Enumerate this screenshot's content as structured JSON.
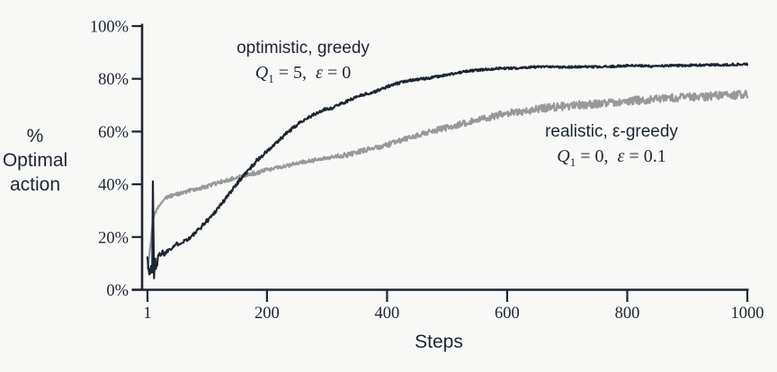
{
  "page": {
    "background": "#f8f8f6",
    "ink_color": "#1c2633"
  },
  "chart_data": {
    "type": "line",
    "title": "",
    "xlabel": "Steps",
    "ylabel": "% Optimal action",
    "ylabel_lines": [
      "%",
      "Optimal",
      "action"
    ],
    "xlim": [
      1,
      1000
    ],
    "ylim": [
      0,
      100
    ],
    "grid": false,
    "legend_position": "inline-annotations",
    "axis_color": "#1c2633",
    "x_ticks": [
      {
        "value": 1,
        "label": "1"
      },
      {
        "value": 200,
        "label": "200"
      },
      {
        "value": 400,
        "label": "400"
      },
      {
        "value": 600,
        "label": "600"
      },
      {
        "value": 800,
        "label": "800"
      },
      {
        "value": 1000,
        "label": "1000"
      }
    ],
    "y_ticks": [
      {
        "value": 0,
        "label": "0%"
      },
      {
        "value": 20,
        "label": "20%"
      },
      {
        "value": 40,
        "label": "40%"
      },
      {
        "value": 60,
        "label": "60%"
      },
      {
        "value": 80,
        "label": "80%"
      },
      {
        "value": 100,
        "label": "100%"
      }
    ],
    "series": [
      {
        "name": "optimistic, greedy",
        "params": "Q1 = 5, ε = 0",
        "color": "#1c2633",
        "seed": 1337,
        "keypoints": [
          [
            1,
            13
          ],
          [
            2,
            10
          ],
          [
            3,
            7
          ],
          [
            4,
            5.5
          ],
          [
            5,
            8
          ],
          [
            6,
            6.5
          ],
          [
            7,
            9
          ],
          [
            8,
            7
          ],
          [
            9,
            6.5
          ],
          [
            10,
            41
          ],
          [
            11,
            20
          ],
          [
            12,
            5
          ],
          [
            13,
            11
          ],
          [
            14,
            12
          ],
          [
            15,
            8.5
          ],
          [
            17,
            9
          ],
          [
            19,
            13
          ],
          [
            21,
            14.5
          ],
          [
            23,
            13
          ],
          [
            26,
            14.5
          ],
          [
            29,
            13.5
          ],
          [
            33,
            14.5
          ],
          [
            37,
            15.5
          ],
          [
            42,
            16
          ],
          [
            47,
            17
          ],
          [
            52,
            17.5
          ],
          [
            58,
            18
          ],
          [
            65,
            19
          ],
          [
            71,
            19.5
          ],
          [
            78,
            21
          ],
          [
            85,
            22.5
          ],
          [
            95,
            25
          ],
          [
            108,
            28
          ],
          [
            120,
            31.5
          ],
          [
            133,
            35
          ],
          [
            145,
            39
          ],
          [
            158,
            42.5
          ],
          [
            170,
            45.5
          ],
          [
            183,
            49
          ],
          [
            195,
            51.5
          ],
          [
            208,
            54
          ],
          [
            220,
            56.5
          ],
          [
            233,
            59.5
          ],
          [
            245,
            61.5
          ],
          [
            258,
            64
          ],
          [
            270,
            65.5
          ],
          [
            284,
            67
          ],
          [
            297,
            68.5
          ],
          [
            310,
            69
          ],
          [
            322,
            70.5
          ],
          [
            334,
            71.5
          ],
          [
            347,
            73
          ],
          [
            359,
            74
          ],
          [
            372,
            74.5
          ],
          [
            384,
            75.5
          ],
          [
            400,
            77
          ],
          [
            414,
            78
          ],
          [
            437,
            79.5
          ],
          [
            462,
            80
          ],
          [
            487,
            81
          ],
          [
            512,
            82
          ],
          [
            537,
            83
          ],
          [
            562,
            83.5
          ],
          [
            587,
            84
          ],
          [
            612,
            84
          ],
          [
            640,
            84.5
          ],
          [
            680,
            84.5
          ],
          [
            720,
            84.5
          ],
          [
            760,
            84.5
          ],
          [
            800,
            85
          ],
          [
            840,
            84.8
          ],
          [
            880,
            85
          ],
          [
            920,
            85.2
          ],
          [
            960,
            85.3
          ],
          [
            1000,
            85.6
          ]
        ],
        "noise": [
          [
            1,
            1.1
          ],
          [
            15,
            1.0
          ],
          [
            30,
            0.7
          ],
          [
            120,
            0.8
          ],
          [
            300,
            0.55
          ],
          [
            600,
            0.4
          ],
          [
            1000,
            0.4
          ]
        ]
      },
      {
        "name": "realistic, ε-greedy",
        "params": "Q1 = 0, ε = 0.1",
        "color": "#98989a",
        "seed": 4242,
        "keypoints": [
          [
            1,
            8
          ],
          [
            2,
            9.5
          ],
          [
            3,
            11
          ],
          [
            4,
            13
          ],
          [
            5,
            15
          ],
          [
            6,
            17
          ],
          [
            7,
            19
          ],
          [
            8,
            22
          ],
          [
            9,
            24
          ],
          [
            10,
            26
          ],
          [
            12,
            28
          ],
          [
            14,
            29
          ],
          [
            16,
            30
          ],
          [
            18,
            31
          ],
          [
            20,
            32
          ],
          [
            23,
            33
          ],
          [
            26,
            33.8
          ],
          [
            30,
            34.5
          ],
          [
            35,
            35.3
          ],
          [
            40,
            35.6
          ],
          [
            48,
            36
          ],
          [
            56,
            36.5
          ],
          [
            64,
            37
          ],
          [
            72,
            37.6
          ],
          [
            85,
            38.3
          ],
          [
            97,
            39
          ],
          [
            110,
            40
          ],
          [
            122,
            40.8
          ],
          [
            135,
            41.7
          ],
          [
            147,
            42.5
          ],
          [
            160,
            43.3
          ],
          [
            172,
            43.9
          ],
          [
            185,
            44.4
          ],
          [
            197,
            45.3
          ],
          [
            210,
            46
          ],
          [
            222,
            46.6
          ],
          [
            235,
            47.2
          ],
          [
            247,
            47.8
          ],
          [
            260,
            48.3
          ],
          [
            272,
            48.9
          ],
          [
            285,
            49.4
          ],
          [
            297,
            50
          ],
          [
            310,
            50.6
          ],
          [
            322,
            50.9
          ],
          [
            335,
            51.2
          ],
          [
            347,
            52
          ],
          [
            360,
            52.8
          ],
          [
            372,
            53.4
          ],
          [
            385,
            54
          ],
          [
            400,
            54.9
          ],
          [
            412,
            56
          ],
          [
            425,
            56.8
          ],
          [
            437,
            57.5
          ],
          [
            450,
            58.5
          ],
          [
            462,
            59.4
          ],
          [
            475,
            60.1
          ],
          [
            487,
            60.8
          ],
          [
            500,
            61.5
          ],
          [
            512,
            62.2
          ],
          [
            525,
            62.9
          ],
          [
            537,
            63.6
          ],
          [
            550,
            64.3
          ],
          [
            562,
            65
          ],
          [
            575,
            65.7
          ],
          [
            587,
            66.3
          ],
          [
            600,
            66.8
          ],
          [
            612,
            67.2
          ],
          [
            625,
            67.6
          ],
          [
            637,
            68
          ],
          [
            650,
            68.5
          ],
          [
            662,
            68.9
          ],
          [
            675,
            69.2
          ],
          [
            687,
            69.5
          ],
          [
            700,
            69.8
          ],
          [
            712,
            70
          ],
          [
            725,
            70.2
          ],
          [
            737,
            70.3
          ],
          [
            750,
            70.5
          ],
          [
            762,
            70.6
          ],
          [
            775,
            71
          ],
          [
            787,
            71.2
          ],
          [
            800,
            71.5
          ],
          [
            812,
            71.7
          ],
          [
            825,
            71.9
          ],
          [
            837,
            72.1
          ],
          [
            850,
            72.3
          ],
          [
            862,
            72.5
          ],
          [
            875,
            72.7
          ],
          [
            887,
            72.8
          ],
          [
            900,
            73
          ],
          [
            925,
            73.2
          ],
          [
            950,
            73.5
          ],
          [
            975,
            73.7
          ],
          [
            1000,
            74
          ]
        ],
        "noise": [
          [
            1,
            0.5
          ],
          [
            50,
            0.7
          ],
          [
            250,
            0.8
          ],
          [
            450,
            1.0
          ],
          [
            650,
            1.5
          ],
          [
            1000,
            1.6
          ]
        ]
      }
    ],
    "annotations": [
      {
        "series": 0,
        "line1": "optimistic, greedy",
        "math_parts": [
          {
            "s": "i",
            "t": "Q"
          },
          {
            "s": "sub",
            "t": "1"
          },
          {
            "s": "n",
            "t": " = 5,  "
          },
          {
            "s": "i",
            "t": "ε"
          },
          {
            "s": "n",
            "t": " = 0"
          }
        ]
      },
      {
        "series": 1,
        "line1": "realistic, ε-greedy",
        "math_parts": [
          {
            "s": "i",
            "t": "Q"
          },
          {
            "s": "sub",
            "t": "1"
          },
          {
            "s": "n",
            "t": " = 0,  "
          },
          {
            "s": "i",
            "t": "ε"
          },
          {
            "s": "n",
            "t": " = 0.1"
          }
        ]
      }
    ]
  }
}
